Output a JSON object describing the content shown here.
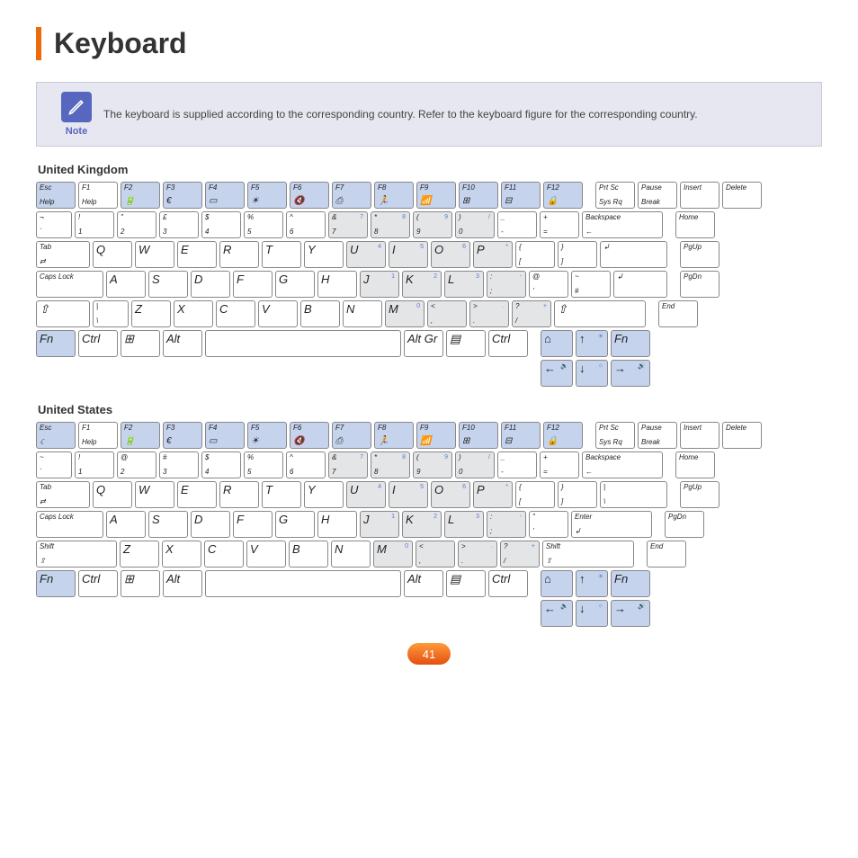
{
  "page": {
    "title": "Keyboard",
    "note_label": "Note",
    "note_text": "The keyboard is supplied according to the corresponding country. Refer to the keyboard figure for the corresponding country.",
    "page_number": "41",
    "accent_color": "#ec6a0c",
    "note_bg": "#e6e7f0",
    "note_icon_bg": "#5767c0",
    "fn_key_color": "#c5d3ed",
    "numpad_shade": "#e4e5e7"
  },
  "layouts": [
    {
      "label": "United Kingdom",
      "rows": [
        [
          {
            "t": "Esc",
            "b": "Help",
            "w": "w1",
            "fn": true,
            "sub": "☾"
          },
          {
            "t": "F1",
            "b": "Help",
            "w": "w1"
          },
          {
            "t": "F2",
            "w": "w1",
            "fn": true,
            "sym": "🔋"
          },
          {
            "t": "F3",
            "w": "w1",
            "fn": true,
            "sym": "€"
          },
          {
            "t": "F4",
            "w": "w1",
            "fn": true,
            "sym": "▭"
          },
          {
            "t": "F5",
            "w": "w1",
            "fn": true,
            "sym": "☀"
          },
          {
            "t": "F6",
            "w": "w1",
            "fn": true,
            "sym": "🔇"
          },
          {
            "t": "F7",
            "w": "w1",
            "fn": true,
            "sym": "⎙"
          },
          {
            "t": "F8",
            "w": "w1",
            "fn": true,
            "sym": "🏃"
          },
          {
            "t": "F9",
            "w": "w1",
            "fn": true,
            "sym": "📶"
          },
          {
            "t": "F10",
            "w": "w1",
            "fn": true,
            "sym": "⊞"
          },
          {
            "t": "F11",
            "w": "w1",
            "fn": true,
            "sym": "⊟"
          },
          {
            "t": "F12",
            "w": "w1",
            "fn": true,
            "sym": "🔒"
          },
          {
            "w": "wgap"
          },
          {
            "t": "Prt Sc",
            "b": "Sys Rq",
            "w": "w1"
          },
          {
            "t": "Pause",
            "b": "Break",
            "w": "w1"
          },
          {
            "t": "Insert",
            "w": "w1"
          },
          {
            "t": "Delete",
            "w": "w1"
          }
        ],
        [
          {
            "t": "¬",
            "b": "`",
            "w": "w1s"
          },
          {
            "t": "!",
            "b": "1",
            "w": "w1"
          },
          {
            "t": "\"",
            "b": "2",
            "w": "w1"
          },
          {
            "t": "£",
            "b": "3",
            "w": "w1"
          },
          {
            "t": "$",
            "b": "4",
            "w": "w1",
            "sub": "€"
          },
          {
            "t": "%",
            "b": "5",
            "w": "w1"
          },
          {
            "t": "^",
            "b": "6",
            "w": "w1"
          },
          {
            "t": "&",
            "b": "7",
            "w": "w1",
            "np": true,
            "sup": "7"
          },
          {
            "t": "*",
            "b": "8",
            "w": "w1",
            "np": true,
            "sup": "8"
          },
          {
            "t": "(",
            "b": "9",
            "w": "w1",
            "np": true,
            "sup": "9"
          },
          {
            "t": ")",
            "b": "0",
            "w": "w1",
            "np": true,
            "sup": "/"
          },
          {
            "t": "_",
            "b": "-",
            "w": "w1"
          },
          {
            "t": "+",
            "b": "=",
            "w": "w1"
          },
          {
            "t": "Backspace",
            "b": "←",
            "w": "w2"
          },
          {
            "w": "wgap"
          },
          {
            "t": "Home",
            "w": "w1"
          }
        ],
        [
          {
            "t": "Tab",
            "b": "⇄",
            "w": "w15"
          },
          {
            "m": "Q",
            "w": "w1"
          },
          {
            "m": "W",
            "w": "w1"
          },
          {
            "m": "E",
            "w": "w1"
          },
          {
            "m": "R",
            "w": "w1"
          },
          {
            "m": "T",
            "w": "w1"
          },
          {
            "m": "Y",
            "w": "w1"
          },
          {
            "m": "U",
            "w": "w1",
            "np": true,
            "sup": "4"
          },
          {
            "m": "I",
            "w": "w1",
            "np": true,
            "sup": "5"
          },
          {
            "m": "O",
            "w": "w1",
            "np": true,
            "sup": "6"
          },
          {
            "m": "P",
            "w": "w1",
            "np": true,
            "sup": "*"
          },
          {
            "t": "{",
            "b": "[",
            "w": "w1"
          },
          {
            "t": "}",
            "b": "]",
            "w": "w1"
          },
          {
            "b": "↲",
            "w": "w175"
          },
          {
            "w": "wgap"
          },
          {
            "t": "PgUp",
            "w": "w1"
          }
        ],
        [
          {
            "t": "Caps Lock",
            "w": "w175"
          },
          {
            "m": "A",
            "w": "w1"
          },
          {
            "m": "S",
            "w": "w1"
          },
          {
            "m": "D",
            "w": "w1"
          },
          {
            "m": "F",
            "w": "w1"
          },
          {
            "m": "G",
            "w": "w1"
          },
          {
            "m": "H",
            "w": "w1"
          },
          {
            "m": "J",
            "w": "w1",
            "np": true,
            "sup": "1"
          },
          {
            "m": "K",
            "w": "w1",
            "np": true,
            "sup": "2"
          },
          {
            "m": "L",
            "w": "w1",
            "np": true,
            "sup": "3"
          },
          {
            "t": ":",
            "b": ";",
            "w": "w1",
            "np": true,
            "sup": "-"
          },
          {
            "t": "@",
            "b": "'",
            "w": "w1"
          },
          {
            "t": "~",
            "b": "#",
            "w": "w1"
          },
          {
            "b": "↲",
            "w": "w15"
          },
          {
            "w": "wgap"
          },
          {
            "t": "PgDn",
            "w": "w1"
          }
        ],
        [
          {
            "m": "⇧",
            "w": "w15"
          },
          {
            "t": "|",
            "b": "\\",
            "w": "w1s"
          },
          {
            "m": "Z",
            "w": "w1"
          },
          {
            "m": "X",
            "w": "w1"
          },
          {
            "m": "C",
            "w": "w1"
          },
          {
            "m": "V",
            "w": "w1"
          },
          {
            "m": "B",
            "w": "w1"
          },
          {
            "m": "N",
            "w": "w1"
          },
          {
            "m": "M",
            "w": "w1",
            "np": true,
            "sup": "0"
          },
          {
            "t": "<",
            "b": ",",
            "w": "w1",
            "np": true
          },
          {
            "t": ">",
            "b": ".",
            "w": "w1",
            "np": true,
            "sup": "."
          },
          {
            "t": "?",
            "b": "/",
            "w": "w1",
            "np": true,
            "sup": "+"
          },
          {
            "m": "⇧",
            "w": "w225"
          },
          {
            "w": "wgap"
          },
          {
            "t": "End",
            "w": "w1"
          }
        ],
        [
          {
            "m": "Fn",
            "w": "w1",
            "fn": true
          },
          {
            "m": "Ctrl",
            "w": "w1"
          },
          {
            "m": "⊞",
            "w": "w1"
          },
          {
            "m": "Alt",
            "w": "w1"
          },
          {
            "w": "wspace"
          },
          {
            "m": "Alt Gr",
            "w": "w1"
          },
          {
            "m": "▤",
            "w": "w1"
          },
          {
            "m": "Ctrl",
            "w": "w1"
          },
          {
            "w": "wgap"
          },
          {
            "m": "⌂",
            "w": "wsml",
            "fn": true
          },
          {
            "m": "↑",
            "w": "wsml",
            "fn": true,
            "sup": "☀"
          },
          {
            "m": "Fn",
            "w": "w1",
            "fn": true
          }
        ],
        [
          {
            "w": "w1",
            "vis": false
          },
          {
            "w": "w1",
            "vis": false
          },
          {
            "w": "w1",
            "vis": false
          },
          {
            "w": "w1",
            "vis": false
          },
          {
            "w": "wspace",
            "vis": false
          },
          {
            "w": "w1",
            "vis": false
          },
          {
            "w": "w1",
            "vis": false
          },
          {
            "w": "w1",
            "vis": false
          },
          {
            "w": "wgap"
          },
          {
            "m": "←",
            "w": "wsml",
            "fn": true,
            "sup": "🔉"
          },
          {
            "m": "↓",
            "w": "wsml",
            "fn": true,
            "sup": "☼"
          },
          {
            "m": "→",
            "w": "w1",
            "fn": true,
            "sup": "🔊"
          }
        ]
      ]
    },
    {
      "label": "United States",
      "rows": [
        [
          {
            "t": "Esc",
            "w": "w1",
            "fn": true,
            "sub": "☾"
          },
          {
            "t": "F1",
            "b": "Help",
            "w": "w1"
          },
          {
            "t": "F2",
            "w": "w1",
            "fn": true,
            "sym": "🔋"
          },
          {
            "t": "F3",
            "w": "w1",
            "fn": true,
            "sym": "€"
          },
          {
            "t": "F4",
            "w": "w1",
            "fn": true,
            "sym": "▭"
          },
          {
            "t": "F5",
            "w": "w1",
            "fn": true,
            "sym": "☀"
          },
          {
            "t": "F6",
            "w": "w1",
            "fn": true,
            "sym": "🔇"
          },
          {
            "t": "F7",
            "w": "w1",
            "fn": true,
            "sym": "⎙"
          },
          {
            "t": "F8",
            "w": "w1",
            "fn": true,
            "sym": "🏃"
          },
          {
            "t": "F9",
            "w": "w1",
            "fn": true,
            "sym": "📶"
          },
          {
            "t": "F10",
            "w": "w1",
            "fn": true,
            "sym": "⊞"
          },
          {
            "t": "F11",
            "w": "w1",
            "fn": true,
            "sym": "⊟"
          },
          {
            "t": "F12",
            "w": "w1",
            "fn": true,
            "sym": "🔒"
          },
          {
            "w": "wgap"
          },
          {
            "t": "Prt Sc",
            "b": "Sys Rq",
            "w": "w1"
          },
          {
            "t": "Pause",
            "b": "Break",
            "w": "w1"
          },
          {
            "t": "Insert",
            "w": "w1"
          },
          {
            "t": "Delete",
            "w": "w1"
          }
        ],
        [
          {
            "t": "~",
            "b": "`",
            "w": "w1s"
          },
          {
            "t": "!",
            "b": "1",
            "w": "w1"
          },
          {
            "t": "@",
            "b": "2",
            "w": "w1"
          },
          {
            "t": "#",
            "b": "3",
            "w": "w1"
          },
          {
            "t": "$",
            "b": "4",
            "w": "w1"
          },
          {
            "t": "%",
            "b": "5",
            "w": "w1"
          },
          {
            "t": "^",
            "b": "6",
            "w": "w1"
          },
          {
            "t": "&",
            "b": "7",
            "w": "w1",
            "np": true,
            "sup": "7"
          },
          {
            "t": "*",
            "b": "8",
            "w": "w1",
            "np": true,
            "sup": "8"
          },
          {
            "t": "(",
            "b": "9",
            "w": "w1",
            "np": true,
            "sup": "9"
          },
          {
            "t": ")",
            "b": "0",
            "w": "w1",
            "np": true,
            "sup": "/"
          },
          {
            "t": "_",
            "b": "-",
            "w": "w1"
          },
          {
            "t": "+",
            "b": "=",
            "w": "w1"
          },
          {
            "t": "Backspace",
            "b": "←",
            "w": "w2"
          },
          {
            "w": "wgap"
          },
          {
            "t": "Home",
            "w": "w1"
          }
        ],
        [
          {
            "t": "Tab",
            "b": "⇄",
            "w": "w15"
          },
          {
            "m": "Q",
            "w": "w1"
          },
          {
            "m": "W",
            "w": "w1"
          },
          {
            "m": "E",
            "w": "w1"
          },
          {
            "m": "R",
            "w": "w1"
          },
          {
            "m": "T",
            "w": "w1"
          },
          {
            "m": "Y",
            "w": "w1"
          },
          {
            "m": "U",
            "w": "w1",
            "np": true,
            "sup": "4"
          },
          {
            "m": "I",
            "w": "w1",
            "np": true,
            "sup": "5"
          },
          {
            "m": "O",
            "w": "w1",
            "np": true,
            "sup": "6"
          },
          {
            "m": "P",
            "w": "w1",
            "np": true,
            "sup": "*"
          },
          {
            "t": "{",
            "b": "[",
            "w": "w1"
          },
          {
            "t": "}",
            "b": "]",
            "w": "w1"
          },
          {
            "t": "|",
            "b": "\\",
            "w": "w175"
          },
          {
            "w": "wgap"
          },
          {
            "t": "PgUp",
            "w": "w1"
          }
        ],
        [
          {
            "t": "Caps Lock",
            "w": "w175"
          },
          {
            "m": "A",
            "w": "w1"
          },
          {
            "m": "S",
            "w": "w1"
          },
          {
            "m": "D",
            "w": "w1"
          },
          {
            "m": "F",
            "w": "w1"
          },
          {
            "m": "G",
            "w": "w1"
          },
          {
            "m": "H",
            "w": "w1"
          },
          {
            "m": "J",
            "w": "w1",
            "np": true,
            "sup": "1"
          },
          {
            "m": "K",
            "w": "w1",
            "np": true,
            "sup": "2"
          },
          {
            "m": "L",
            "w": "w1",
            "np": true,
            "sup": "3"
          },
          {
            "t": ":",
            "b": ";",
            "w": "w1",
            "np": true,
            "sup": "-"
          },
          {
            "t": "\"",
            "b": "'",
            "w": "w1"
          },
          {
            "t": "Enter",
            "b": "↲",
            "w": "w2"
          },
          {
            "w": "wgap"
          },
          {
            "t": "PgDn",
            "w": "w1"
          }
        ],
        [
          {
            "t": "Shift",
            "b": "⇧",
            "w": "w2"
          },
          {
            "m": "Z",
            "w": "w1"
          },
          {
            "m": "X",
            "w": "w1"
          },
          {
            "m": "C",
            "w": "w1"
          },
          {
            "m": "V",
            "w": "w1"
          },
          {
            "m": "B",
            "w": "w1"
          },
          {
            "m": "N",
            "w": "w1"
          },
          {
            "m": "M",
            "w": "w1",
            "np": true,
            "sup": "0"
          },
          {
            "t": "<",
            "b": ",",
            "w": "w1",
            "np": true
          },
          {
            "t": ">",
            "b": ".",
            "w": "w1",
            "np": true,
            "sup": "."
          },
          {
            "t": "?",
            "b": "/",
            "w": "w1",
            "np": true,
            "sup": "+"
          },
          {
            "t": "Shift",
            "b": "⇧",
            "w": "w225"
          },
          {
            "w": "wgap"
          },
          {
            "t": "End",
            "w": "w1"
          }
        ],
        [
          {
            "m": "Fn",
            "w": "w1",
            "fn": true
          },
          {
            "m": "Ctrl",
            "w": "w1"
          },
          {
            "m": "⊞",
            "w": "w1"
          },
          {
            "m": "Alt",
            "w": "w1"
          },
          {
            "w": "wspace"
          },
          {
            "m": "Alt",
            "w": "w1"
          },
          {
            "m": "▤",
            "w": "w1"
          },
          {
            "m": "Ctrl",
            "w": "w1"
          },
          {
            "w": "wgap"
          },
          {
            "m": "⌂",
            "w": "wsml",
            "fn": true
          },
          {
            "m": "↑",
            "w": "wsml",
            "fn": true,
            "sup": "☀"
          },
          {
            "m": "Fn",
            "w": "w1",
            "fn": true
          }
        ],
        [
          {
            "w": "w1",
            "vis": false
          },
          {
            "w": "w1",
            "vis": false
          },
          {
            "w": "w1",
            "vis": false
          },
          {
            "w": "w1",
            "vis": false
          },
          {
            "w": "wspace",
            "vis": false
          },
          {
            "w": "w1",
            "vis": false
          },
          {
            "w": "w1",
            "vis": false
          },
          {
            "w": "w1",
            "vis": false
          },
          {
            "w": "wgap"
          },
          {
            "m": "←",
            "w": "wsml",
            "fn": true,
            "sup": "🔉"
          },
          {
            "m": "↓",
            "w": "wsml",
            "fn": true,
            "sup": "☼"
          },
          {
            "m": "→",
            "w": "w1",
            "fn": true,
            "sup": "🔊"
          }
        ]
      ]
    }
  ]
}
